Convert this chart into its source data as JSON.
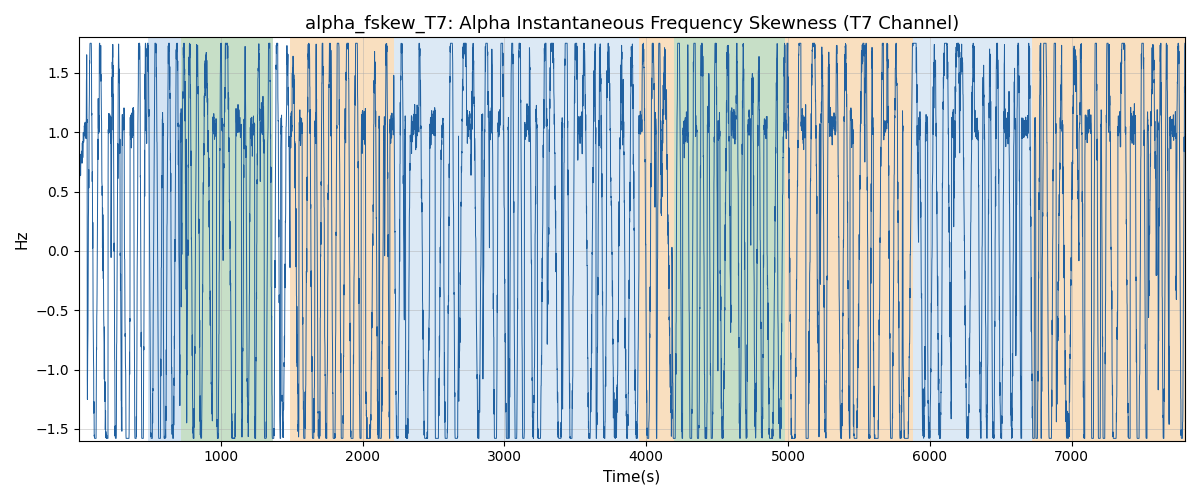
{
  "title": "alpha_fskew_T7: Alpha Instantaneous Frequency Skewness (T7 Channel)",
  "xlabel": "Time(s)",
  "ylabel": "Hz",
  "xlim": [
    0,
    7800
  ],
  "ylim": [
    -1.6,
    1.8
  ],
  "line_color": "#2060a0",
  "line_width": 0.7,
  "bg_color": "#ffffff",
  "grid_color": "#aaaaaa",
  "background_bands": [
    {
      "xmin": 490,
      "xmax": 720,
      "color": "#a8c8e8",
      "alpha": 0.5
    },
    {
      "xmin": 720,
      "xmax": 1370,
      "color": "#90c090",
      "alpha": 0.5
    },
    {
      "xmin": 1490,
      "xmax": 2220,
      "color": "#f5c080",
      "alpha": 0.5
    },
    {
      "xmin": 2220,
      "xmax": 3950,
      "color": "#a8c8e8",
      "alpha": 0.4
    },
    {
      "xmin": 3950,
      "xmax": 4200,
      "color": "#f5c080",
      "alpha": 0.5
    },
    {
      "xmin": 4200,
      "xmax": 4980,
      "color": "#90c090",
      "alpha": 0.5
    },
    {
      "xmin": 4980,
      "xmax": 5880,
      "color": "#f5c080",
      "alpha": 0.5
    },
    {
      "xmin": 5880,
      "xmax": 6720,
      "color": "#a8c8e8",
      "alpha": 0.4
    },
    {
      "xmin": 6720,
      "xmax": 7800,
      "color": "#f5c080",
      "alpha": 0.5
    }
  ],
  "seed": 12345,
  "n_points": 7800,
  "title_fontsize": 13,
  "label_fontsize": 11,
  "tick_fontsize": 10
}
